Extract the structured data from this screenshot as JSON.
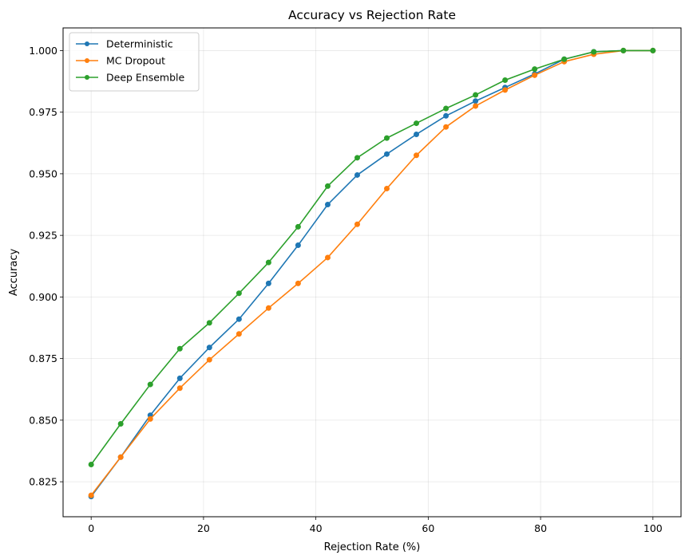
{
  "chart_data": {
    "type": "line",
    "title": "Accuracy vs Rejection Rate",
    "xlabel": "Rejection Rate (%)",
    "ylabel": "Accuracy",
    "xlim": [
      -5,
      105
    ],
    "ylim": [
      0.8108,
      1.0092
    ],
    "xticks": [
      0,
      20,
      40,
      60,
      80,
      100
    ],
    "yticks": [
      0.825,
      0.85,
      0.875,
      0.9,
      0.925,
      0.95,
      0.975,
      1.0
    ],
    "grid": true,
    "legend_position": "top-left",
    "x": [
      0,
      5.26,
      10.53,
      15.79,
      21.05,
      26.32,
      31.58,
      36.84,
      42.11,
      47.37,
      52.63,
      57.89,
      63.16,
      68.42,
      73.68,
      78.95,
      84.21,
      89.47,
      94.74,
      100
    ],
    "series": [
      {
        "name": "Deterministic",
        "color": "#1f77b4",
        "values": [
          0.819,
          0.835,
          0.852,
          0.867,
          0.8795,
          0.891,
          0.9055,
          0.921,
          0.9375,
          0.9495,
          0.958,
          0.966,
          0.9735,
          0.9795,
          0.985,
          0.9905,
          0.9965,
          0.9995,
          1.0,
          1.0
        ]
      },
      {
        "name": "MC Dropout",
        "color": "#ff7f0e",
        "values": [
          0.8195,
          0.835,
          0.8505,
          0.863,
          0.8745,
          0.885,
          0.8955,
          0.9055,
          0.916,
          0.9295,
          0.944,
          0.9575,
          0.969,
          0.9775,
          0.984,
          0.99,
          0.9955,
          0.9985,
          1.0,
          1.0
        ]
      },
      {
        "name": "Deep Ensemble",
        "color": "#2ca02c",
        "values": [
          0.832,
          0.8485,
          0.8645,
          0.879,
          0.8895,
          0.9015,
          0.914,
          0.9285,
          0.945,
          0.9565,
          0.9645,
          0.9705,
          0.9765,
          0.982,
          0.988,
          0.9925,
          0.9965,
          0.9995,
          1.0,
          1.0
        ]
      }
    ]
  }
}
